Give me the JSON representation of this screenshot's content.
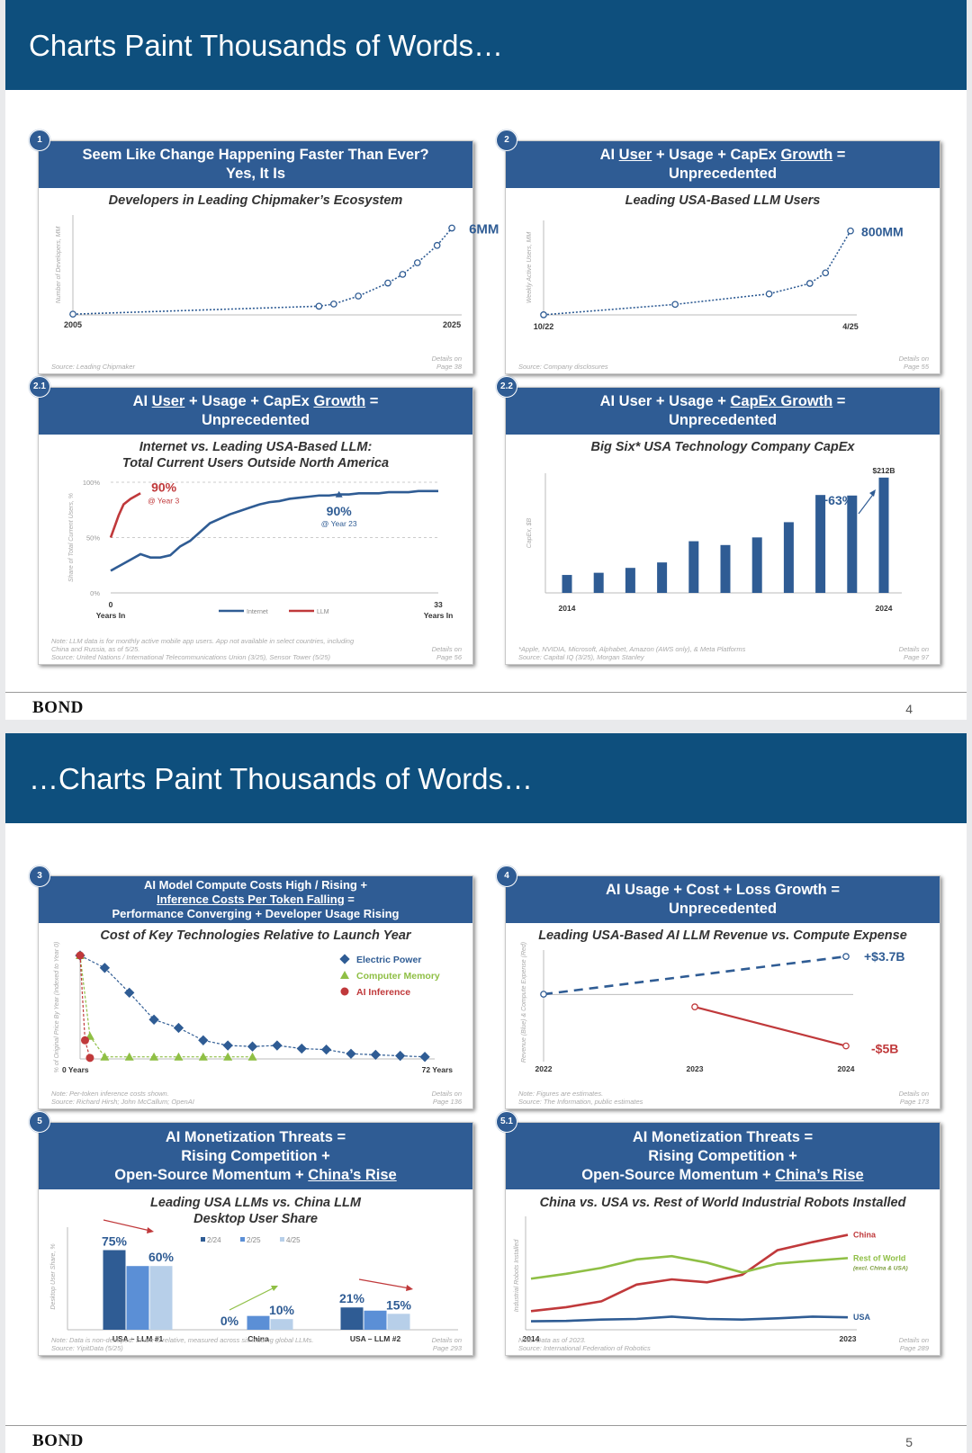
{
  "slides": [
    {
      "title": "Charts Paint Thousands of Words…",
      "brand": "BOND",
      "page": "4"
    },
    {
      "title": "…Charts Paint Thousands of Words…",
      "brand": "BOND",
      "page": "5"
    }
  ],
  "panels": {
    "p1": {
      "badge": "1",
      "header_line1": "Seem Like Change Happening Faster Than Ever?",
      "header_line2": "Yes, It Is",
      "subtitle": "Developers in Leading Chipmaker’s Ecosystem",
      "source": "Source: Leading Chipmaker",
      "details": [
        "Details on",
        "Page 38"
      ]
    },
    "p2": {
      "badge": "2",
      "header_parts": [
        "AI ",
        "User",
        " + Usage + CapEx ",
        "Growth",
        " ="
      ],
      "header_line2": "Unprecedented",
      "subtitle": "Leading USA-Based LLM Users",
      "source": "Source: Company disclosures",
      "details": [
        "Details on",
        "Page 55"
      ]
    },
    "p21": {
      "badge": "2.1",
      "header_parts": [
        "AI ",
        "User",
        " + Usage + CapEx ",
        "Growth",
        " ="
      ],
      "header_line2": "Unprecedented",
      "subtitle_line1": "Internet vs. Leading USA-Based LLM:",
      "subtitle_line2": "Total Current Users Outside North America",
      "note_line1": "Note: LLM data is for monthly active mobile app users. App not available in select countries, including",
      "note_line2": "China and Russia, as of 5/25.",
      "note_line3": "Source: United Nations / International Telecommunications Union (3/25), Sensor Tower (5/25)",
      "details": [
        "Details on",
        "Page 56"
      ]
    },
    "p22": {
      "badge": "2.2",
      "header_parts": [
        "AI User + Usage + ",
        "CapEx Growth",
        " ="
      ],
      "header_line2": "Unprecedented",
      "subtitle": "Big Six* USA Technology Company CapEx",
      "note_line1": "*Apple, NVIDIA, Microsoft, Alphabet, Amazon (AWS only), & Meta Platforms",
      "note_line2": "Source: Capital IQ (3/25), Morgan Stanley",
      "details": [
        "Details on",
        "Page 97"
      ]
    },
    "p3": {
      "badge": "3",
      "header_line1": "AI Model Compute Costs High / Rising +",
      "header_line2": "Inference Costs Per Token Falling",
      "header_line2_suffix": " =",
      "header_line3": "Performance Converging + Developer Usage Rising",
      "subtitle": "Cost of Key Technologies Relative to Launch Year",
      "note_line1": "Note: Per-token inference costs shown.",
      "note_line2": "Source: Richard Hirsh; John McCallum; OpenAI",
      "details": [
        "Details on",
        "Page 136"
      ]
    },
    "p4": {
      "badge": "4",
      "header_line1": "AI Usage + Cost + Loss Growth =",
      "header_line2": "Unprecedented",
      "subtitle": "Leading USA-Based AI LLM Revenue vs. Compute Expense",
      "note_line1": "Note: Figures are estimates.",
      "note_line2": "Source: The Information, public estimates",
      "details": [
        "Details on",
        "Page 173"
      ]
    },
    "p5": {
      "badge": "5",
      "header_line1": "AI Monetization Threats =",
      "header_line2": "Rising Competition +",
      "header_line3_prefix": "Open-Source Momentum + ",
      "header_line3_link": "China’s Rise",
      "subtitle_line1": "Leading USA LLMs vs. China LLM",
      "subtitle_line2": "Desktop User Share",
      "note_line1": "Note: Data is non-deduped. Share is relative, measured across six leading global LLMs.",
      "note_line2": "Source: YipitData (5/25)",
      "details": [
        "Details on",
        "Page 293"
      ]
    },
    "p51": {
      "badge": "5.1",
      "header_line1": "AI Monetization Threats =",
      "header_line2": "Rising Competition +",
      "header_line3_prefix": "Open-Source Momentum + ",
      "header_line3_link": "China’s Rise",
      "subtitle": "China vs. USA vs. Rest of World Industrial Robots Installed",
      "note_line1": "Note: Data as of 2023.",
      "note_line2": "Source: International Federation of Robotics",
      "details": [
        "Details on",
        "Page 289"
      ]
    }
  },
  "colors": {
    "header_bg": "#0e4f7d",
    "panel_header": "#2f5c94",
    "series_blue": "#2f5c94",
    "series_red": "#c0393b",
    "series_green": "#8fbf45",
    "bar_mid": "#5b8fd6",
    "bar_light": "#b7cfe9"
  },
  "chart_data": [
    {
      "id": "p1",
      "type": "line",
      "ylabel": "Number of Developers, MM",
      "x_tick_labels": [
        "2005",
        "2025"
      ],
      "x": [
        0.0,
        0.5,
        0.53,
        0.58,
        0.64,
        0.67,
        0.7,
        0.74,
        0.77
      ],
      "values": [
        0.05,
        0.6,
        0.75,
        1.3,
        2.2,
        2.8,
        3.6,
        4.8,
        6.0
      ],
      "end_label": "6MM",
      "xlim": [
        0,
        0.79
      ],
      "ylim": [
        0,
        6.9
      ]
    },
    {
      "id": "p2",
      "type": "line",
      "ylabel": "Weekly Active Users, MM",
      "x_tick_labels": [
        "10/22",
        "4/25"
      ],
      "x": [
        0.0,
        0.42,
        0.72,
        0.85,
        0.9,
        0.98
      ],
      "values": [
        1,
        100,
        200,
        300,
        400,
        800
      ],
      "end_label": "800MM",
      "xlim": [
        0,
        1.0
      ],
      "ylim": [
        0,
        900
      ]
    },
    {
      "id": "p21",
      "type": "line",
      "ylabel": "Share of Total Current Users, %",
      "y_tick_labels": [
        "100%",
        "50%",
        "0%"
      ],
      "x_tick_labels": [
        "0",
        "33"
      ],
      "x_axis_label": "Years In",
      "xlim": [
        0,
        33
      ],
      "ylim": [
        0,
        100
      ],
      "series": [
        {
          "name": "Internet",
          "x": [
            0,
            1,
            2,
            3,
            4,
            5,
            6,
            7,
            8,
            9,
            10,
            11,
            12,
            13,
            14,
            15,
            16,
            17,
            18,
            19,
            20,
            21,
            22,
            23,
            24,
            25,
            26,
            27,
            28,
            29,
            30,
            31,
            32,
            33
          ],
          "values": [
            20,
            25,
            30,
            35,
            32,
            32,
            34,
            42,
            47,
            55,
            63,
            67,
            71,
            74,
            77,
            80,
            82,
            83,
            85,
            86,
            87,
            88,
            88,
            89,
            89,
            90,
            90,
            90,
            91,
            91,
            91,
            92,
            92,
            92
          ]
        },
        {
          "name": "LLM",
          "x": [
            0,
            0.8,
            1.3,
            2,
            3
          ],
          "values": [
            50,
            70,
            80,
            85,
            90
          ]
        }
      ],
      "annotations": [
        {
          "value": "90%",
          "sub": "@ Year 3"
        },
        {
          "value": "90%",
          "sub": "@ Year 23"
        }
      ]
    },
    {
      "id": "p22",
      "type": "bar",
      "ylabel": "CapEx, $B",
      "x_tick_labels": [
        "2014",
        "2024"
      ],
      "categories": [
        "2014",
        "2015",
        "2016",
        "2017",
        "2018",
        "2019",
        "2020",
        "2021",
        "2022",
        "2023",
        "2024"
      ],
      "values": [
        33,
        37,
        46,
        56,
        95,
        88,
        102,
        130,
        180,
        179,
        212
      ],
      "top_label": "$212B",
      "growth_label": "+63%",
      "ylim": [
        0,
        220
      ]
    },
    {
      "id": "p3",
      "type": "scatter",
      "ylabel": "% of Original Price By Year (Indexed to Year 0)",
      "x_tick_labels": [
        "0 Years",
        "72 Years"
      ],
      "xlim": [
        0,
        72
      ],
      "ylim": [
        0,
        100
      ],
      "series": [
        {
          "name": "Electric Power",
          "x": [
            0,
            5,
            10,
            15,
            20,
            25,
            30,
            35,
            40,
            45,
            50,
            55,
            60,
            65,
            70
          ],
          "values": [
            100,
            88,
            64,
            38,
            30,
            18,
            13,
            12,
            13,
            10,
            9,
            5,
            4,
            3,
            2
          ]
        },
        {
          "name": "Computer Memory",
          "x": [
            0,
            2,
            5,
            10,
            15,
            20,
            25,
            30,
            35
          ],
          "values": [
            100,
            22,
            2,
            2,
            2,
            2,
            2,
            2,
            2
          ]
        },
        {
          "name": "AI Inference",
          "x": [
            0,
            1,
            2
          ],
          "values": [
            100,
            18,
            1
          ]
        }
      ]
    },
    {
      "id": "p4",
      "type": "line",
      "ylabel": "Revenue (Blue) & Compute Expense (Red)",
      "x_tick_labels": [
        "2022",
        "2023",
        "2024"
      ],
      "xlim": [
        2022,
        2024
      ],
      "ylim": [
        -6,
        4.5
      ],
      "series": [
        {
          "name": "Revenue",
          "x": [
            2022,
            2024
          ],
          "values": [
            0.03,
            3.7
          ]
        },
        {
          "name": "Compute Expense",
          "x": [
            2023,
            2024
          ],
          "values": [
            -1.2,
            -5.0
          ]
        }
      ],
      "end_labels": [
        "+$3.7B",
        "-$5B"
      ]
    },
    {
      "id": "p5",
      "type": "bar",
      "ylabel": "Desktop User Share, %",
      "categories": [
        "USA – LLM #1",
        "China",
        "USA – LLM #2"
      ],
      "series": [
        {
          "name": "2/24",
          "values": [
            75,
            0,
            21
          ]
        },
        {
          "name": "2/25",
          "values": [
            60,
            13,
            18
          ]
        },
        {
          "name": "4/25",
          "values": [
            60,
            10,
            15
          ]
        }
      ],
      "labels": [
        [
          "75%",
          "60%"
        ],
        [
          "0%",
          "10%"
        ],
        [
          "21%",
          "15%"
        ]
      ],
      "ylim": [
        0,
        100
      ]
    },
    {
      "id": "p51",
      "type": "line",
      "ylabel": "Industrial Robots Installed",
      "x_tick_labels": [
        "2014",
        "2023"
      ],
      "xlim": [
        2014,
        2023
      ],
      "categories": [
        "2014",
        "2015",
        "2016",
        "2017",
        "2018",
        "2019",
        "2020",
        "2021",
        "2022",
        "2023"
      ],
      "series": [
        {
          "name": "China",
          "values": [
            57,
            69,
            87,
            138,
            154,
            145,
            168,
            243,
            268,
            290
          ]
        },
        {
          "name": "Rest of World",
          "sub": "(excl. China & USA)",
          "values": [
            156,
            171,
            189,
            215,
            225,
            205,
            175,
            202,
            211,
            219
          ]
        },
        {
          "name": "USA",
          "values": [
            26,
            27,
            31,
            33,
            40,
            33,
            31,
            35,
            40,
            38
          ]
        }
      ],
      "ylim": [
        0,
        330
      ]
    }
  ]
}
